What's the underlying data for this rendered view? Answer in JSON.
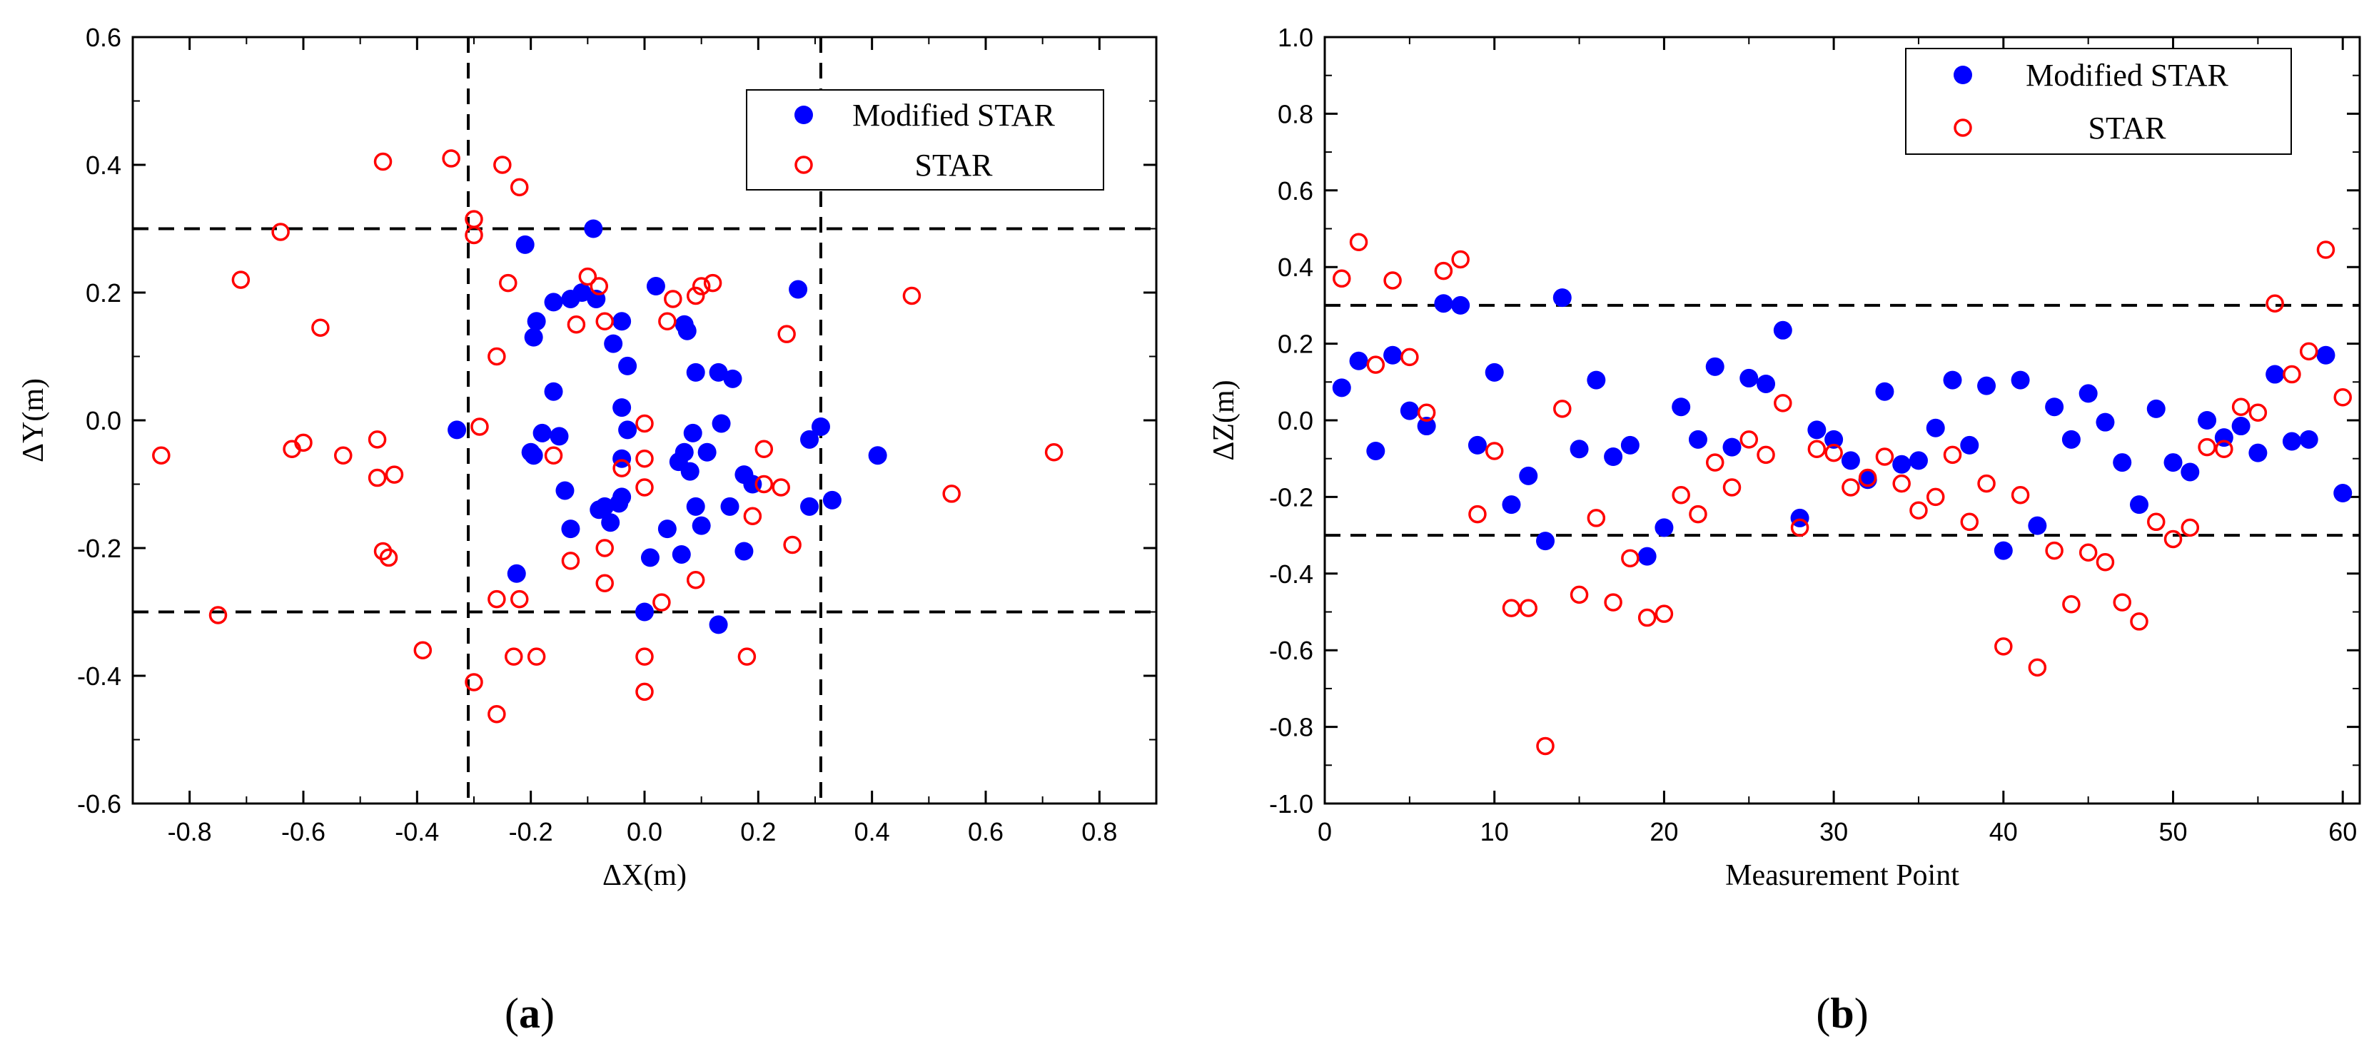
{
  "chart_data": [
    {
      "type": "scatter",
      "xlabel": "ΔX(m)",
      "ylabel": "ΔY(m)",
      "xlim": [
        -0.9,
        0.9
      ],
      "ylim": [
        -0.6,
        0.6
      ],
      "x_ticks": [
        "-0.8",
        "-0.6",
        "-0.4",
        "-0.2",
        "0.0",
        "0.2",
        "0.4",
        "0.6",
        "0.8"
      ],
      "y_ticks": [
        "-0.6",
        "-0.4",
        "-0.2",
        "0.0",
        "0.2",
        "0.4",
        "0.6"
      ],
      "x_tick_values": [
        -0.8,
        -0.6,
        -0.4,
        -0.2,
        0,
        0.2,
        0.4,
        0.6,
        0.8
      ],
      "y_tick_values": [
        -0.6,
        -0.4,
        -0.2,
        0,
        0.2,
        0.4,
        0.6
      ],
      "reference_lines": {
        "x": [
          -0.31,
          0.31
        ],
        "y": [
          -0.3,
          0.3
        ]
      },
      "legend": [
        "Modified STAR",
        "STAR"
      ],
      "caption_letter": "a",
      "series": [
        {
          "name": "Modified STAR",
          "marker": "filled-circle",
          "color": "#0000ff",
          "points": [
            [
              -0.33,
              -0.015
            ],
            [
              -0.21,
              0.275
            ],
            [
              -0.09,
              0.3
            ],
            [
              -0.19,
              0.155
            ],
            [
              -0.195,
              0.13
            ],
            [
              -0.16,
              0.185
            ],
            [
              -0.13,
              0.19
            ],
            [
              -0.11,
              0.2
            ],
            [
              -0.085,
              0.19
            ],
            [
              -0.04,
              0.155
            ],
            [
              -0.055,
              0.12
            ],
            [
              -0.03,
              0.085
            ],
            [
              0.02,
              0.21
            ],
            [
              0.07,
              0.15
            ],
            [
              0.075,
              0.14
            ],
            [
              0.09,
              0.075
            ],
            [
              0.13,
              0.075
            ],
            [
              0.155,
              0.065
            ],
            [
              0.27,
              0.205
            ],
            [
              -0.16,
              0.045
            ],
            [
              -0.2,
              -0.05
            ],
            [
              -0.195,
              -0.055
            ],
            [
              -0.18,
              -0.02
            ],
            [
              -0.15,
              -0.025
            ],
            [
              -0.04,
              0.02
            ],
            [
              -0.03,
              -0.015
            ],
            [
              0.07,
              -0.05
            ],
            [
              0.06,
              -0.065
            ],
            [
              0.085,
              -0.02
            ],
            [
              0.11,
              -0.05
            ],
            [
              0.135,
              -0.005
            ],
            [
              -0.14,
              -0.11
            ],
            [
              -0.07,
              -0.135
            ],
            [
              -0.04,
              -0.06
            ],
            [
              -0.04,
              -0.12
            ],
            [
              -0.045,
              -0.13
            ],
            [
              -0.06,
              -0.16
            ],
            [
              -0.08,
              -0.14
            ],
            [
              -0.13,
              -0.17
            ],
            [
              0.04,
              -0.17
            ],
            [
              0.065,
              -0.21
            ],
            [
              0.1,
              -0.165
            ],
            [
              0.09,
              -0.135
            ],
            [
              0.08,
              -0.08
            ],
            [
              0.175,
              -0.085
            ],
            [
              0.19,
              -0.1
            ],
            [
              0.15,
              -0.135
            ],
            [
              0.175,
              -0.205
            ],
            [
              0.29,
              -0.03
            ],
            [
              0.31,
              -0.01
            ],
            [
              0.29,
              -0.135
            ],
            [
              0.33,
              -0.125
            ],
            [
              0.41,
              -0.055
            ],
            [
              0.01,
              -0.215
            ],
            [
              -0.225,
              -0.24
            ],
            [
              0.0,
              -0.3
            ],
            [
              0.13,
              -0.32
            ]
          ]
        },
        {
          "name": "STAR",
          "marker": "open-circle",
          "color": "#ff0000",
          "points": [
            [
              -0.85,
              -0.055
            ],
            [
              -0.75,
              -0.305
            ],
            [
              -0.71,
              0.22
            ],
            [
              -0.64,
              0.295
            ],
            [
              -0.62,
              -0.045
            ],
            [
              -0.6,
              -0.035
            ],
            [
              -0.57,
              0.145
            ],
            [
              -0.53,
              -0.055
            ],
            [
              -0.47,
              -0.03
            ],
            [
              -0.47,
              -0.09
            ],
            [
              -0.46,
              -0.205
            ],
            [
              -0.45,
              -0.215
            ],
            [
              -0.44,
              -0.085
            ],
            [
              -0.46,
              0.405
            ],
            [
              -0.39,
              -0.36
            ],
            [
              -0.34,
              0.41
            ],
            [
              -0.3,
              0.315
            ],
            [
              -0.3,
              0.29
            ],
            [
              -0.29,
              -0.01
            ],
            [
              -0.3,
              -0.41
            ],
            [
              -0.26,
              -0.46
            ],
            [
              -0.26,
              0.1
            ],
            [
              -0.25,
              0.4
            ],
            [
              -0.24,
              0.215
            ],
            [
              -0.22,
              0.365
            ],
            [
              -0.22,
              -0.28
            ],
            [
              -0.26,
              -0.28
            ],
            [
              -0.23,
              -0.37
            ],
            [
              -0.19,
              -0.37
            ],
            [
              -0.16,
              -0.055
            ],
            [
              -0.13,
              -0.22
            ],
            [
              -0.12,
              0.15
            ],
            [
              -0.1,
              0.225
            ],
            [
              -0.08,
              0.21
            ],
            [
              -0.07,
              0.155
            ],
            [
              -0.07,
              -0.2
            ],
            [
              -0.07,
              -0.255
            ],
            [
              -0.04,
              -0.075
            ],
            [
              0.0,
              -0.005
            ],
            [
              0.0,
              -0.06
            ],
            [
              0.0,
              -0.105
            ],
            [
              0.0,
              -0.37
            ],
            [
              0.0,
              -0.425
            ],
            [
              0.03,
              -0.285
            ],
            [
              0.04,
              0.155
            ],
            [
              0.05,
              0.19
            ],
            [
              0.09,
              0.195
            ],
            [
              0.1,
              0.21
            ],
            [
              0.12,
              0.215
            ],
            [
              0.09,
              -0.25
            ],
            [
              0.18,
              -0.37
            ],
            [
              0.19,
              -0.15
            ],
            [
              0.21,
              -0.1
            ],
            [
              0.21,
              -0.045
            ],
            [
              0.24,
              -0.105
            ],
            [
              0.25,
              0.135
            ],
            [
              0.26,
              -0.195
            ],
            [
              0.47,
              0.195
            ],
            [
              0.54,
              -0.115
            ],
            [
              0.72,
              -0.05
            ]
          ]
        }
      ]
    },
    {
      "type": "scatter",
      "xlabel": "Measurement Point",
      "ylabel": "ΔZ(m)",
      "xlim": [
        0,
        61
      ],
      "ylim": [
        -1.0,
        1.0
      ],
      "x_ticks": [
        "0",
        "10",
        "20",
        "30",
        "40",
        "50",
        "60"
      ],
      "y_ticks": [
        "-1.0",
        "-0.8",
        "-0.6",
        "-0.4",
        "-0.2",
        "0.0",
        "0.2",
        "0.4",
        "0.6",
        "0.8",
        "1.0"
      ],
      "x_tick_values": [
        0,
        10,
        20,
        30,
        40,
        50,
        60
      ],
      "y_tick_values": [
        -1.0,
        -0.8,
        -0.6,
        -0.4,
        -0.2,
        0,
        0.2,
        0.4,
        0.6,
        0.8,
        1.0
      ],
      "reference_lines": {
        "y": [
          -0.3,
          0.3
        ]
      },
      "legend": [
        "Modified STAR",
        "STAR"
      ],
      "caption_letter": "b",
      "series": [
        {
          "name": "Modified STAR",
          "marker": "filled-circle",
          "color": "#0000ff",
          "points": [
            [
              1,
              0.085
            ],
            [
              2,
              0.155
            ],
            [
              3,
              -0.08
            ],
            [
              4,
              0.17
            ],
            [
              5,
              0.025
            ],
            [
              6,
              -0.015
            ],
            [
              7,
              0.305
            ],
            [
              8,
              0.3
            ],
            [
              9,
              -0.065
            ],
            [
              10,
              0.125
            ],
            [
              11,
              -0.22
            ],
            [
              12,
              -0.145
            ],
            [
              13,
              -0.315
            ],
            [
              14,
              0.32
            ],
            [
              15,
              -0.075
            ],
            [
              16,
              0.105
            ],
            [
              17,
              -0.095
            ],
            [
              18,
              -0.065
            ],
            [
              19,
              -0.355
            ],
            [
              20,
              -0.28
            ],
            [
              21,
              0.035
            ],
            [
              22,
              -0.05
            ],
            [
              23,
              0.14
            ],
            [
              24,
              -0.07
            ],
            [
              25,
              0.11
            ],
            [
              26,
              0.095
            ],
            [
              27,
              0.235
            ],
            [
              28,
              -0.255
            ],
            [
              29,
              -0.025
            ],
            [
              30,
              -0.05
            ],
            [
              31,
              -0.105
            ],
            [
              32,
              -0.155
            ],
            [
              33,
              0.075
            ],
            [
              34,
              -0.115
            ],
            [
              35,
              -0.105
            ],
            [
              36,
              -0.02
            ],
            [
              37,
              0.105
            ],
            [
              38,
              -0.065
            ],
            [
              39,
              0.09
            ],
            [
              40,
              -0.34
            ],
            [
              41,
              0.105
            ],
            [
              42,
              -0.275
            ],
            [
              43,
              0.035
            ],
            [
              44,
              -0.05
            ],
            [
              45,
              0.07
            ],
            [
              46,
              -0.005
            ],
            [
              47,
              -0.11
            ],
            [
              48,
              -0.22
            ],
            [
              49,
              0.03
            ],
            [
              50,
              -0.11
            ],
            [
              51,
              -0.135
            ],
            [
              52,
              0.0
            ],
            [
              53,
              -0.045
            ],
            [
              54,
              -0.015
            ],
            [
              55,
              -0.085
            ],
            [
              56,
              0.12
            ],
            [
              57,
              -0.055
            ],
            [
              58,
              -0.05
            ],
            [
              59,
              0.17
            ],
            [
              60,
              -0.19
            ]
          ]
        },
        {
          "name": "STAR",
          "marker": "open-circle",
          "color": "#ff0000",
          "points": [
            [
              1,
              0.37
            ],
            [
              2,
              0.465
            ],
            [
              3,
              0.145
            ],
            [
              4,
              0.365
            ],
            [
              5,
              0.165
            ],
            [
              6,
              0.02
            ],
            [
              7,
              0.39
            ],
            [
              8,
              0.42
            ],
            [
              9,
              -0.245
            ],
            [
              10,
              -0.08
            ],
            [
              11,
              -0.49
            ],
            [
              12,
              -0.49
            ],
            [
              13,
              -0.85
            ],
            [
              14,
              0.03
            ],
            [
              15,
              -0.455
            ],
            [
              16,
              -0.255
            ],
            [
              17,
              -0.475
            ],
            [
              18,
              -0.36
            ],
            [
              19,
              -0.515
            ],
            [
              20,
              -0.505
            ],
            [
              21,
              -0.195
            ],
            [
              22,
              -0.245
            ],
            [
              23,
              -0.11
            ],
            [
              24,
              -0.175
            ],
            [
              25,
              -0.05
            ],
            [
              26,
              -0.09
            ],
            [
              27,
              0.045
            ],
            [
              28,
              -0.28
            ],
            [
              29,
              -0.075
            ],
            [
              30,
              -0.085
            ],
            [
              31,
              -0.175
            ],
            [
              32,
              -0.15
            ],
            [
              33,
              -0.095
            ],
            [
              34,
              -0.165
            ],
            [
              35,
              -0.235
            ],
            [
              36,
              -0.2
            ],
            [
              37,
              -0.09
            ],
            [
              38,
              -0.265
            ],
            [
              39,
              -0.165
            ],
            [
              40,
              -0.59
            ],
            [
              41,
              -0.195
            ],
            [
              42,
              -0.645
            ],
            [
              43,
              -0.34
            ],
            [
              44,
              -0.48
            ],
            [
              45,
              -0.345
            ],
            [
              46,
              -0.37
            ],
            [
              47,
              -0.475
            ],
            [
              48,
              -0.525
            ],
            [
              49,
              -0.265
            ],
            [
              50,
              -0.31
            ],
            [
              51,
              -0.28
            ],
            [
              52,
              -0.07
            ],
            [
              53,
              -0.075
            ],
            [
              54,
              0.035
            ],
            [
              55,
              0.02
            ],
            [
              56,
              0.305
            ],
            [
              57,
              0.12
            ],
            [
              58,
              0.18
            ],
            [
              59,
              0.445
            ],
            [
              60,
              0.06
            ]
          ]
        }
      ]
    }
  ]
}
